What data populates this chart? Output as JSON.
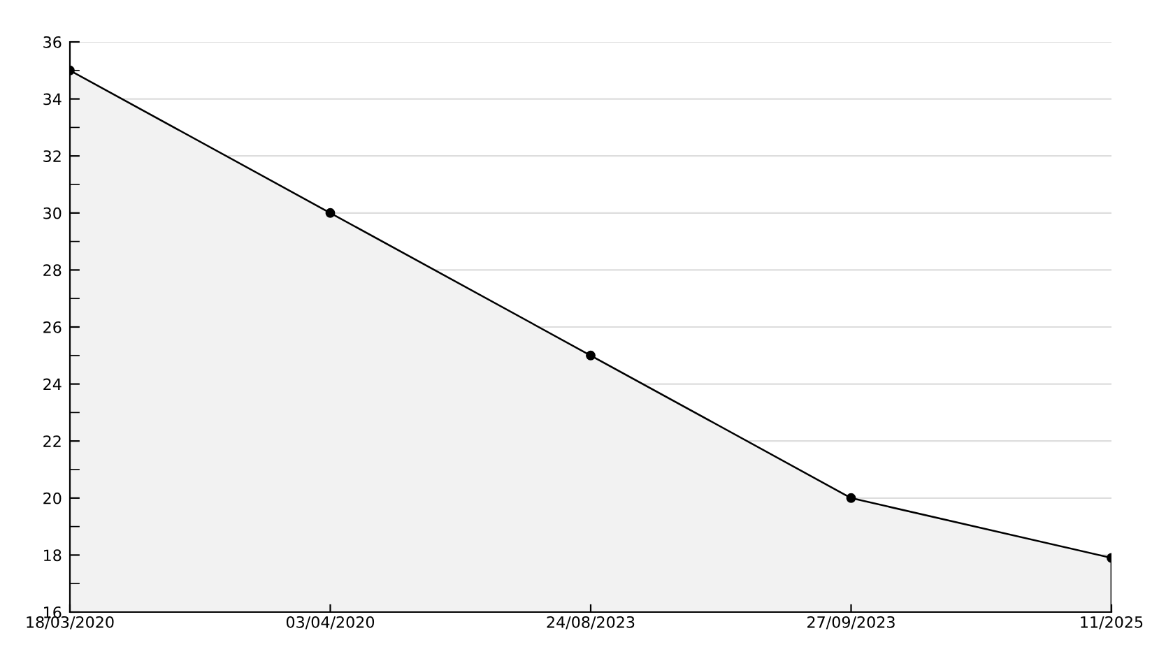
{
  "chart_data": {
    "type": "area",
    "categories": [
      "18/03/2020",
      "03/04/2020",
      "24/08/2023",
      "27/09/2023",
      "11/2025"
    ],
    "series": [
      {
        "color": "#f2f2f2",
        "values": [
          35,
          30,
          25,
          20,
          17.9
        ]
      }
    ],
    "ylim": [
      16,
      36
    ],
    "yticks": [
      16,
      {
        "value": 17,
        "label": null
      },
      18,
      {
        "value": 19,
        "label": null
      },
      20,
      {
        "value": 21,
        "label": null
      },
      22,
      {
        "value": 23,
        "label": null
      },
      24,
      {
        "value": 25,
        "label": null
      },
      26,
      {
        "value": 27,
        "label": null
      },
      28,
      {
        "value": 29,
        "label": null
      },
      30,
      {
        "value": 31,
        "label": null
      },
      32,
      {
        "value": 33,
        "label": null
      },
      34,
      {
        "value": 35,
        "label": null
      },
      36
    ],
    "grid": "y",
    "marker": "circle",
    "line_style": "solid",
    "legend": false
  }
}
